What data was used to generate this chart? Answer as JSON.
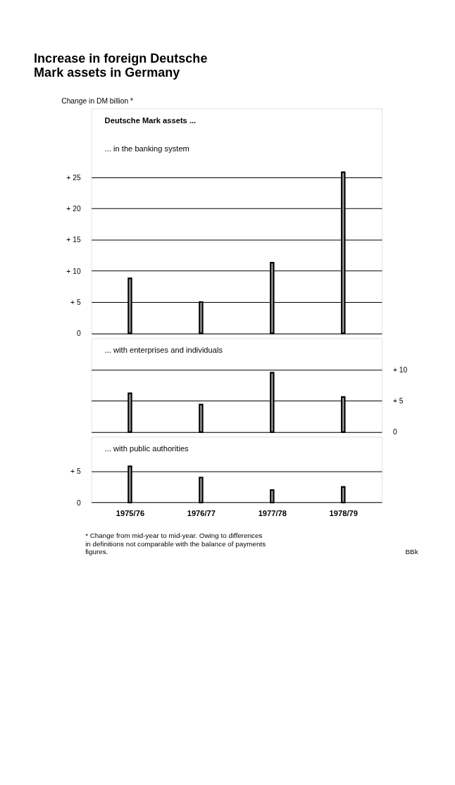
{
  "chart_data": [
    {
      "type": "bar",
      "title": "Increase in foreign Deutsche Mark assets in Germany",
      "ylabel": "Change in DM billion *",
      "categories": [
        "1975/76",
        "1976/77",
        "1977/78",
        "1978/79"
      ],
      "values": [
        8.8,
        5.0,
        11.3,
        25.8
      ],
      "color": "#a8a8a8",
      "ylim": [
        0,
        36
      ],
      "yticks": [
        {
          "value": 0,
          "label": "0"
        },
        {
          "value": 5,
          "label": "+ 5"
        },
        {
          "value": 10,
          "label": "+ 10"
        },
        {
          "value": 15,
          "label": "+ 15"
        },
        {
          "value": 20,
          "label": "+ 20"
        },
        {
          "value": 25,
          "label": "+ 25"
        }
      ],
      "grid": "y",
      "tick_labels": "y",
      "annotations": [
        "Deutsche Mark assets ...",
        "... in the banking system"
      ]
    },
    {
      "type": "bar",
      "categories": [
        "1975/76",
        "1976/77",
        "1977/78",
        "1978/79"
      ],
      "values": [
        6.2,
        4.4,
        9.5,
        5.6
      ],
      "color": "#a8a8a8",
      "ylim": [
        0,
        15
      ],
      "yticks": [
        {
          "value": 0,
          "label": "0"
        },
        {
          "value": 5,
          "label": "+ 5"
        },
        {
          "value": 10,
          "label": "+ 10"
        }
      ],
      "grid": "y",
      "tick_labels": "y",
      "annotations": [
        "... with enterprises and individuals"
      ]
    },
    {
      "type": "bar",
      "categories": [
        "1975/76",
        "1976/77",
        "1977/78",
        "1978/79"
      ],
      "values": [
        5.8,
        4.0,
        2.0,
        2.5
      ],
      "color": "#a8a8a8",
      "ylim": [
        0,
        10.5
      ],
      "yticks": [
        {
          "value": 0,
          "label": "0"
        },
        {
          "value": 5,
          "label": "+ 5"
        }
      ],
      "grid": "y",
      "annotations": [
        "... with public authorities",
        "* Change from mid-year to mid-year. Owing to differences in definitions not comparable with the balance of payments figures.",
        "BBk"
      ]
    }
  ]
}
